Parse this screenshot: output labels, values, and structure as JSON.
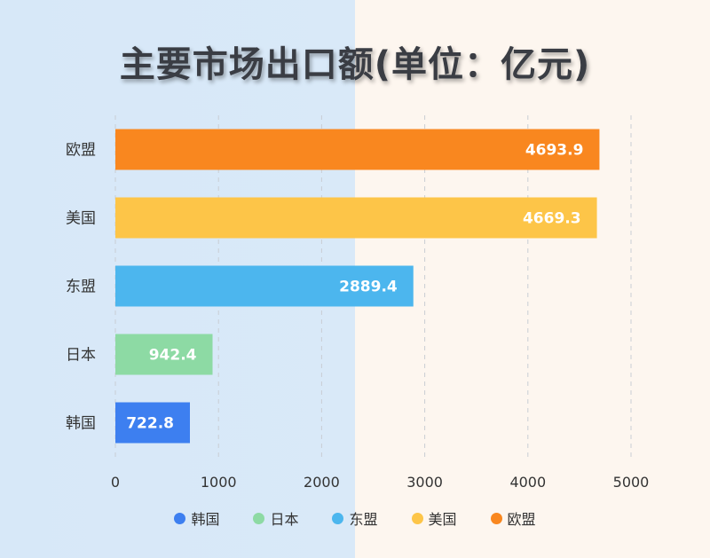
{
  "chart_data": {
    "type": "bar",
    "orientation": "horizontal",
    "title": "主要市场出口额(单位：亿元)",
    "categories": [
      "韩国",
      "日本",
      "东盟",
      "美国",
      "欧盟"
    ],
    "values": [
      722.8,
      942.4,
      2889.4,
      4669.3,
      4693.9
    ],
    "value_labels": [
      "722.8",
      "942.4",
      "2889.4",
      "4669.3",
      "4693.9"
    ],
    "colors": [
      "#3d7ff0",
      "#8ddaa4",
      "#4cb6ee",
      "#fdc548",
      "#f9871f"
    ],
    "xlim": [
      0,
      5000
    ],
    "xticks": [
      0,
      1000,
      2000,
      3000,
      4000,
      5000
    ],
    "xtick_labels": [
      "0",
      "1000",
      "2000",
      "3000",
      "4000",
      "5000"
    ],
    "grid": "vertical dashed",
    "legend_position": "bottom"
  }
}
